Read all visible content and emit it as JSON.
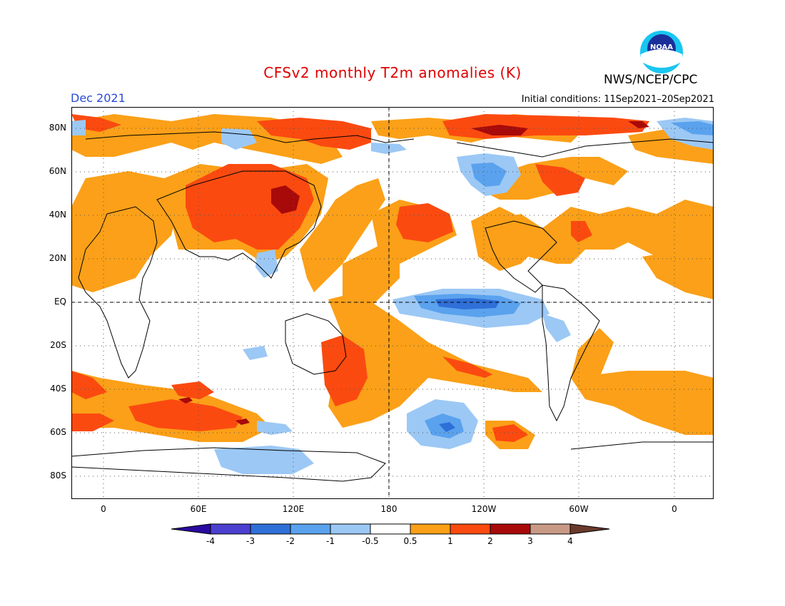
{
  "header": {
    "title": "CFSv2 monthly T2m anomalies (K)",
    "month": "Dec 2021",
    "initial_conditions": "Initial conditions: 11Sep2021–20Sep2021",
    "agency": "NWS/NCEP/CPC",
    "logo_text": "NOAA"
  },
  "map": {
    "projection": "lon-lat",
    "lat_labels": [
      "80N",
      "60N",
      "40N",
      "20N",
      "EQ",
      "20S",
      "40S",
      "60S",
      "80S"
    ],
    "lon_labels": [
      "0",
      "60E",
      "120E",
      "180",
      "120W",
      "60W",
      "0"
    ],
    "colors": {
      "c_m4": "#2a0aa0",
      "c_m3": "#4b3fd0",
      "c_m2": "#2f6fd8",
      "c_m1": "#5aa2ee",
      "c_m05": "#9cc8f5",
      "c_0": "#ffffff",
      "c_05": "#fba018",
      "c_1": "#fb4a10",
      "c_2": "#a80a0a",
      "c_3": "#c89a86",
      "c_4": "#6a3a2c"
    }
  },
  "colorbar": {
    "labels": [
      "-4",
      "-3",
      "-2",
      "-1",
      "-0.5",
      "0.5",
      "1",
      "2",
      "3",
      "4"
    ]
  }
}
